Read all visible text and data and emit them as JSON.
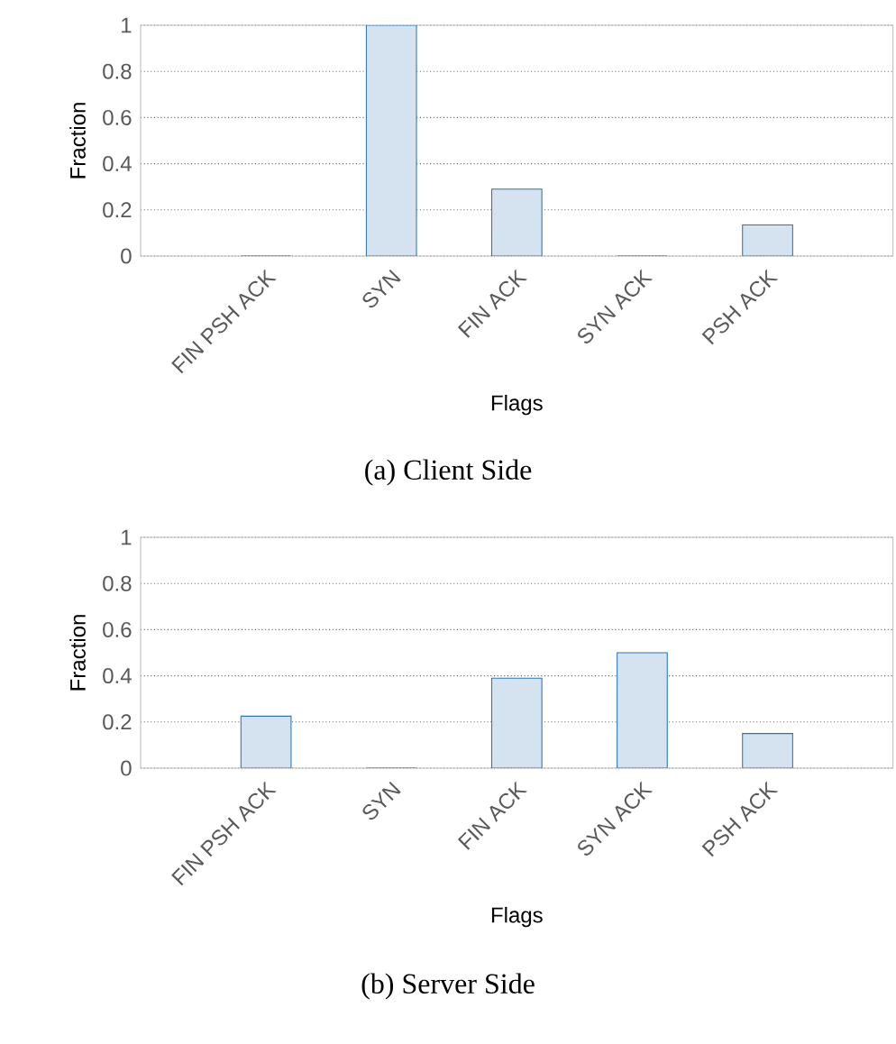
{
  "chart_data": [
    {
      "type": "bar",
      "categories": [
        "FIN PSH ACK",
        "SYN",
        "FIN ACK",
        "SYN ACK",
        "PSH ACK"
      ],
      "values": [
        0,
        1,
        0.29,
        0,
        0.135
      ],
      "color": "#2e75b6",
      "xlabel": "Flags",
      "ylabel": "Fraction",
      "ylim": [
        0,
        1
      ],
      "yticks": [
        0,
        0.2,
        0.4,
        0.6,
        0.8,
        1
      ],
      "grid": "y",
      "annotations": [
        "(a) Client Side"
      ]
    },
    {
      "type": "bar",
      "categories": [
        "FIN PSH ACK",
        "SYN",
        "FIN ACK",
        "SYN ACK",
        "PSH ACK"
      ],
      "values": [
        0.225,
        0,
        0.39,
        0.5,
        0.15
      ],
      "color": "#2e75b6",
      "xlabel": "Flags",
      "ylabel": "Fraction",
      "ylim": [
        0,
        1
      ],
      "yticks": [
        0,
        0.2,
        0.4,
        0.6,
        0.8,
        1
      ],
      "grid": "y",
      "annotations": [
        "(b) Server Side"
      ]
    }
  ]
}
